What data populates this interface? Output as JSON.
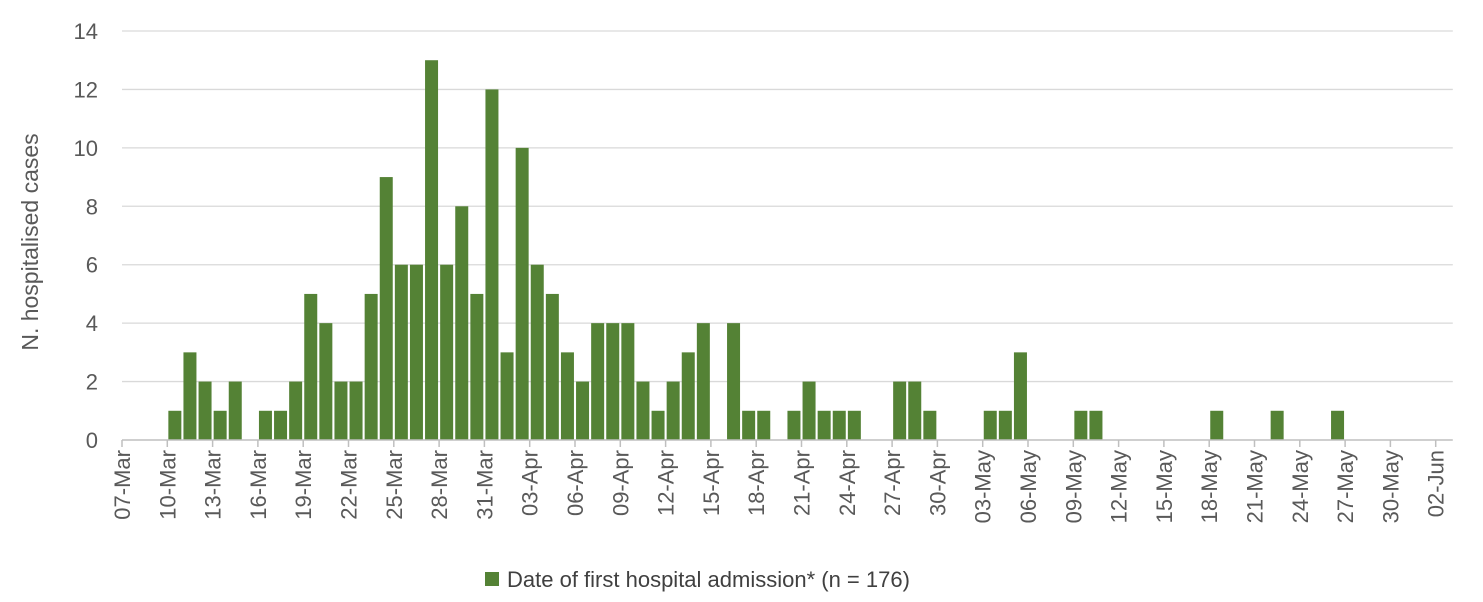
{
  "chart_data": {
    "type": "bar",
    "ylabel": "N. hospitalised cases",
    "ylim": [
      0,
      14
    ],
    "yticks": [
      "0",
      "2",
      "4",
      "6",
      "8",
      "10",
      "12",
      "14"
    ],
    "grid": true,
    "legend": {
      "label": "Date of first hospital admission* (n = 176)",
      "placement": "bottom"
    },
    "x_tick_labels": [
      "07-Mar",
      "10-Mar",
      "13-Mar",
      "16-Mar",
      "19-Mar",
      "22-Mar",
      "25-Mar",
      "28-Mar",
      "31-Mar",
      "03-Apr",
      "06-Apr",
      "09-Apr",
      "12-Apr",
      "15-Apr",
      "18-Apr",
      "21-Apr",
      "24-Apr",
      "27-Apr",
      "30-Apr",
      "03-May",
      "06-May",
      "09-May",
      "12-May",
      "15-May",
      "18-May",
      "21-May",
      "24-May",
      "27-May",
      "30-May",
      "02-Jun"
    ],
    "series": [
      {
        "name": "Date of first hospital admission* (n = 176)",
        "color": "#548235",
        "x": [
          "07-Mar",
          "08-Mar",
          "09-Mar",
          "10-Mar",
          "11-Mar",
          "12-Mar",
          "13-Mar",
          "14-Mar",
          "15-Mar",
          "16-Mar",
          "17-Mar",
          "18-Mar",
          "19-Mar",
          "20-Mar",
          "21-Mar",
          "22-Mar",
          "23-Mar",
          "24-Mar",
          "25-Mar",
          "26-Mar",
          "27-Mar",
          "28-Mar",
          "29-Mar",
          "30-Mar",
          "31-Mar",
          "01-Apr",
          "02-Apr",
          "03-Apr",
          "04-Apr",
          "05-Apr",
          "06-Apr",
          "07-Apr",
          "08-Apr",
          "09-Apr",
          "10-Apr",
          "11-Apr",
          "12-Apr",
          "13-Apr",
          "14-Apr",
          "15-Apr",
          "16-Apr",
          "17-Apr",
          "18-Apr",
          "19-Apr",
          "20-Apr",
          "21-Apr",
          "22-Apr",
          "23-Apr",
          "24-Apr",
          "25-Apr",
          "26-Apr",
          "27-Apr",
          "28-Apr",
          "29-Apr",
          "30-Apr",
          "01-May",
          "02-May",
          "03-May",
          "04-May",
          "05-May",
          "06-May",
          "07-May",
          "08-May",
          "09-May",
          "10-May",
          "11-May",
          "12-May",
          "13-May",
          "14-May",
          "15-May",
          "16-May",
          "17-May",
          "18-May",
          "19-May",
          "20-May",
          "21-May",
          "22-May",
          "23-May",
          "24-May",
          "25-May",
          "26-May",
          "27-May",
          "28-May",
          "29-May",
          "30-May",
          "31-May",
          "01-Jun",
          "02-Jun"
        ],
        "values": [
          0,
          0,
          0,
          1,
          3,
          2,
          1,
          2,
          0,
          1,
          1,
          2,
          5,
          4,
          2,
          2,
          5,
          9,
          6,
          6,
          13,
          6,
          8,
          5,
          12,
          3,
          10,
          6,
          5,
          3,
          2,
          4,
          4,
          4,
          2,
          1,
          2,
          3,
          4,
          0,
          4,
          1,
          1,
          0,
          1,
          2,
          1,
          1,
          1,
          0,
          0,
          2,
          2,
          1,
          0,
          0,
          0,
          1,
          1,
          3,
          0,
          0,
          0,
          1,
          1,
          0,
          0,
          0,
          0,
          0,
          0,
          0,
          1,
          0,
          0,
          0,
          1,
          0,
          0,
          0,
          1,
          0,
          0,
          0,
          0,
          0,
          0,
          0
        ]
      }
    ]
  }
}
